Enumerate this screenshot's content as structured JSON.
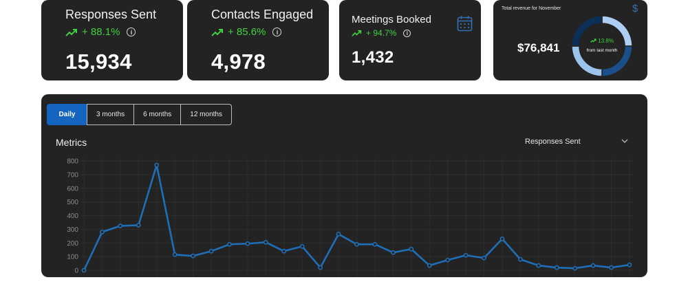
{
  "cards": [
    {
      "title": "Responses Sent",
      "change": "+ 88.1%",
      "value": "15,934"
    },
    {
      "title": "Contacts Engaged",
      "change": "+ 85.6%",
      "value": "4,978"
    },
    {
      "title": "Meetings Booked",
      "change": "+ 94.7%",
      "value": "1,432"
    }
  ],
  "revenue": {
    "label": "Total revenue for November",
    "value": "$76,841",
    "change": "13.8%",
    "change_sub": "from last month",
    "donut_segments": [
      0.25,
      0.25,
      0.25,
      0.25
    ],
    "donut_colors": [
      "#aecdf2",
      "#1b4f8a",
      "#9cc2ee",
      "#0c2f57"
    ]
  },
  "icons": {
    "trend": "trend-up-icon",
    "info": "info-icon",
    "calendar": "calendar-icon",
    "dollar": "dollar-icon",
    "chevron": "chevron-down-icon"
  },
  "colors": {
    "accent": "#1565c0",
    "positive": "#3fd13f",
    "card_bg": "#232323",
    "line": "#1f6fb8"
  },
  "tabs": [
    "Daily",
    "3 months",
    "6 months",
    "12 months"
  ],
  "active_tab": "Daily",
  "panel": {
    "title": "Metrics",
    "metric_selected": "Responses Sent"
  },
  "chart_data": {
    "type": "line",
    "ylim": [
      0,
      800
    ],
    "yticks": [
      0,
      100,
      200,
      300,
      400,
      500,
      600,
      700,
      800
    ],
    "grid": true,
    "series": [
      {
        "values": [
          0,
          280,
          325,
          330,
          770,
          115,
          105,
          140,
          190,
          195,
          205,
          140,
          175,
          20,
          265,
          190,
          190,
          130,
          155,
          35,
          75,
          110,
          90,
          230,
          80,
          35,
          20,
          15,
          35,
          20,
          40
        ]
      }
    ]
  }
}
